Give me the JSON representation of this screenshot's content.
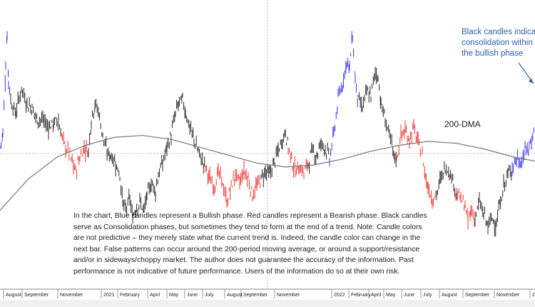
{
  "chart_data": {
    "type": "candlestick",
    "phases_legend": {
      "bullish": {
        "color": "#1f1ff0",
        "label": "Bullish phase"
      },
      "bearish": {
        "color": "#ee1c1c",
        "label": "Bearish phase"
      },
      "consolidation": {
        "color": "#111111",
        "label": "Consolidation phase"
      }
    },
    "moving_average_label": "200-DMA",
    "annotation": [
      "Black candles indicat",
      "consolidation within",
      "the bullish phase"
    ],
    "note": "In the chart, Blue candles represent a Bullish phase. Red candles represent a Bearish phase. Black candles serve as Consolidation phases, but sometimes they tend to form at the end of a trend. Note: Candle colors are not predictive – they merely state what the current trend is. Indeed, the candle color can change in the next bar. False patterns can occur around the 200-period moving average, or around a support/resistance and/or in sideways/choppy market. The author does not guarantee the accuracy of the information. Past performance is not indicative of future performance. Users of the information do so at their own risk.",
    "x_tick_labels": [
      "August",
      "September",
      "November",
      "2021",
      "February",
      "April",
      "May",
      "June",
      "July",
      "August",
      "September",
      "November",
      "2022",
      "February",
      "April",
      "May",
      "June",
      "July",
      "August",
      "September",
      "November",
      "2"
    ],
    "price_segments": [
      {
        "phase": "bullish",
        "points": [
          [
            0,
            0.38
          ],
          [
            4,
            0.45
          ],
          [
            8,
            0.8
          ],
          [
            10,
            0.95
          ],
          [
            12,
            0.72
          ],
          [
            15,
            0.62
          ]
        ]
      },
      {
        "phase": "consolidation",
        "points": [
          [
            15,
            0.62
          ],
          [
            22,
            0.55
          ],
          [
            30,
            0.68
          ],
          [
            38,
            0.6
          ],
          [
            45,
            0.58
          ],
          [
            52,
            0.52
          ],
          [
            60,
            0.52
          ],
          [
            68,
            0.48
          ],
          [
            75,
            0.5
          ],
          [
            82,
            0.52
          ],
          [
            86,
            0.44
          ]
        ]
      },
      {
        "phase": "bearish",
        "points": [
          [
            86,
            0.44
          ],
          [
            92,
            0.38
          ],
          [
            98,
            0.34
          ],
          [
            103,
            0.28
          ],
          [
            106,
            0.26
          ],
          [
            112,
            0.33
          ],
          [
            118,
            0.38
          ],
          [
            124,
            0.36
          ]
        ]
      },
      {
        "phase": "consolidation",
        "points": [
          [
            124,
            0.36
          ],
          [
            128,
            0.52
          ],
          [
            133,
            0.6
          ],
          [
            138,
            0.56
          ],
          [
            144,
            0.44
          ],
          [
            150,
            0.35
          ],
          [
            156,
            0.34
          ],
          [
            162,
            0.3
          ],
          [
            168,
            0.24
          ],
          [
            172,
            0.1
          ],
          [
            176,
            0.06
          ],
          [
            182,
            0.12
          ],
          [
            186,
            0.02
          ],
          [
            190,
            0.07
          ],
          [
            196,
            0.1
          ],
          [
            202,
            0.06
          ],
          [
            206,
            0.13
          ],
          [
            212,
            0.2
          ],
          [
            218,
            0.16
          ],
          [
            222,
            0.24
          ],
          [
            228,
            0.3
          ],
          [
            234,
            0.38
          ],
          [
            240,
            0.44
          ],
          [
            246,
            0.55
          ],
          [
            250,
            0.6
          ],
          [
            256,
            0.62
          ],
          [
            260,
            0.56
          ],
          [
            266,
            0.48
          ],
          [
            272,
            0.42
          ],
          [
            278,
            0.36
          ],
          [
            282,
            0.32
          ],
          [
            288,
            0.28
          ]
        ]
      },
      {
        "phase": "bearish",
        "points": [
          [
            288,
            0.28
          ],
          [
            294,
            0.22
          ],
          [
            300,
            0.18
          ],
          [
            306,
            0.25
          ],
          [
            312,
            0.2
          ],
          [
            318,
            0.1
          ],
          [
            324,
            0.18
          ],
          [
            330,
            0.24
          ],
          [
            336,
            0.2
          ],
          [
            342,
            0.26
          ],
          [
            348,
            0.22
          ],
          [
            354,
            0.14
          ],
          [
            360,
            0.18
          ],
          [
            366,
            0.22
          ]
        ]
      },
      {
        "phase": "consolidation",
        "points": [
          [
            366,
            0.22
          ],
          [
            372,
            0.26
          ],
          [
            378,
            0.24
          ],
          [
            384,
            0.3
          ],
          [
            390,
            0.36
          ],
          [
            396,
            0.42
          ],
          [
            400,
            0.46
          ],
          [
            404,
            0.38
          ]
        ]
      },
      {
        "phase": "bearish",
        "points": [
          [
            404,
            0.38
          ],
          [
            410,
            0.3
          ],
          [
            414,
            0.26
          ],
          [
            420,
            0.28
          ],
          [
            426,
            0.25
          ],
          [
            432,
            0.3
          ]
        ]
      },
      {
        "phase": "consolidation",
        "points": [
          [
            432,
            0.3
          ],
          [
            438,
            0.36
          ],
          [
            444,
            0.34
          ],
          [
            450,
            0.4
          ],
          [
            456,
            0.38
          ],
          [
            462,
            0.32
          ]
        ]
      },
      {
        "phase": "bullish",
        "points": [
          [
            462,
            0.32
          ],
          [
            468,
            0.45
          ],
          [
            474,
            0.62
          ],
          [
            480,
            0.7
          ],
          [
            486,
            0.82
          ],
          [
            490,
            0.78
          ],
          [
            494,
            0.95
          ],
          [
            498,
            0.72
          ],
          [
            502,
            0.62
          ]
        ]
      },
      {
        "phase": "consolidation",
        "points": [
          [
            502,
            0.62
          ],
          [
            508,
            0.58
          ],
          [
            514,
            0.66
          ],
          [
            520,
            0.64
          ],
          [
            526,
            0.76
          ],
          [
            530,
            0.74
          ],
          [
            534,
            0.6
          ],
          [
            540,
            0.52
          ],
          [
            546,
            0.44
          ],
          [
            552,
            0.34
          ],
          [
            556,
            0.32
          ]
        ]
      },
      {
        "phase": "bearish",
        "points": [
          [
            556,
            0.32
          ],
          [
            562,
            0.44
          ],
          [
            568,
            0.46
          ],
          [
            574,
            0.42
          ],
          [
            580,
            0.48
          ],
          [
            586,
            0.4
          ],
          [
            592,
            0.34
          ],
          [
            596,
            0.24
          ],
          [
            600,
            0.18
          ],
          [
            606,
            0.12
          ],
          [
            612,
            0.14
          ]
        ]
      },
      {
        "phase": "consolidation",
        "points": [
          [
            612,
            0.14
          ],
          [
            618,
            0.22
          ],
          [
            624,
            0.28
          ],
          [
            630,
            0.26
          ],
          [
            636,
            0.2
          ],
          [
            640,
            0.14
          ]
        ]
      },
      {
        "phase": "bearish",
        "points": [
          [
            640,
            0.14
          ],
          [
            646,
            0.12
          ],
          [
            652,
            0.08
          ],
          [
            656,
            0.0
          ],
          [
            660,
            0.06
          ],
          [
            666,
            0.02
          ]
        ]
      },
      {
        "phase": "consolidation",
        "points": [
          [
            666,
            0.02
          ],
          [
            672,
            0.1
          ],
          [
            678,
            0.04
          ],
          [
            684,
            -0.02
          ],
          [
            690,
            0.02
          ],
          [
            696,
            -0.01
          ],
          [
            700,
            0.08
          ],
          [
            706,
            0.18
          ],
          [
            712,
            0.24
          ],
          [
            718,
            0.28
          ]
        ]
      },
      {
        "phase": "bullish",
        "points": [
          [
            718,
            0.28
          ],
          [
            724,
            0.32
          ],
          [
            730,
            0.3
          ],
          [
            736,
            0.36
          ],
          [
            742,
            0.38
          ],
          [
            750,
            0.48
          ]
        ]
      }
    ],
    "ma_points": [
      [
        0,
        0.06
      ],
      [
        40,
        0.22
      ],
      [
        80,
        0.33
      ],
      [
        120,
        0.39
      ],
      [
        160,
        0.43
      ],
      [
        200,
        0.44
      ],
      [
        240,
        0.42
      ],
      [
        280,
        0.38
      ],
      [
        320,
        0.34
      ],
      [
        360,
        0.3
      ],
      [
        400,
        0.28
      ],
      [
        440,
        0.29
      ],
      [
        480,
        0.32
      ],
      [
        520,
        0.36
      ],
      [
        560,
        0.39
      ],
      [
        600,
        0.41
      ],
      [
        640,
        0.4
      ],
      [
        680,
        0.37
      ],
      [
        720,
        0.33
      ],
      [
        750,
        0.31
      ]
    ],
    "y_range": [
      -0.05,
      1.0
    ],
    "grid": true
  },
  "colors": {
    "bullish": "#1f1ff0",
    "bearish": "#ee1c1c",
    "consolidation": "#111111",
    "ma": "#777777",
    "annotation": "#2f5fa8"
  }
}
